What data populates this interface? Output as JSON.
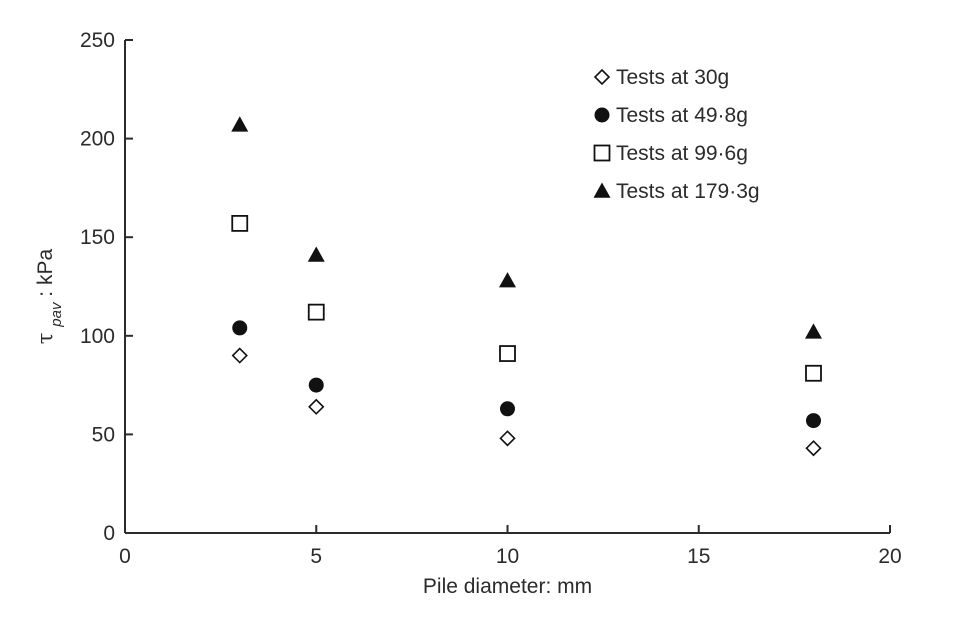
{
  "chart_data": {
    "type": "scatter",
    "title": "",
    "xlabel": "Pile diameter: mm",
    "ylabel": {
      "symbol": "τ",
      "subscript": "pav",
      "suffix": ": kPa"
    },
    "xlim": [
      0,
      20
    ],
    "ylim": [
      0,
      250
    ],
    "xticks": [
      0,
      5,
      10,
      15,
      20
    ],
    "yticks": [
      0,
      50,
      100,
      150,
      200,
      250
    ],
    "grid": false,
    "legend_position": "top-right",
    "colors": {
      "axis": "#2b2b2b",
      "marker": "#111111",
      "label_text": "#2b2b2b",
      "ylabel_text": "#8a3a3a"
    },
    "series": [
      {
        "name": "Tests at 30g",
        "marker": "open-diamond",
        "points": [
          {
            "x": 3,
            "y": 90
          },
          {
            "x": 5,
            "y": 64
          },
          {
            "x": 10,
            "y": 48
          },
          {
            "x": 18,
            "y": 43
          }
        ]
      },
      {
        "name": "Tests at 49·8g",
        "marker": "filled-circle",
        "points": [
          {
            "x": 3,
            "y": 104
          },
          {
            "x": 5,
            "y": 75
          },
          {
            "x": 10,
            "y": 63
          },
          {
            "x": 18,
            "y": 57
          }
        ]
      },
      {
        "name": "Tests at 99·6g",
        "marker": "open-square",
        "points": [
          {
            "x": 3,
            "y": 157
          },
          {
            "x": 5,
            "y": 112
          },
          {
            "x": 10,
            "y": 91
          },
          {
            "x": 18,
            "y": 81
          }
        ]
      },
      {
        "name": "Tests at 179·3g",
        "marker": "filled-triangle",
        "points": [
          {
            "x": 3,
            "y": 207
          },
          {
            "x": 5,
            "y": 141
          },
          {
            "x": 10,
            "y": 128
          },
          {
            "x": 18,
            "y": 102
          }
        ]
      }
    ]
  }
}
